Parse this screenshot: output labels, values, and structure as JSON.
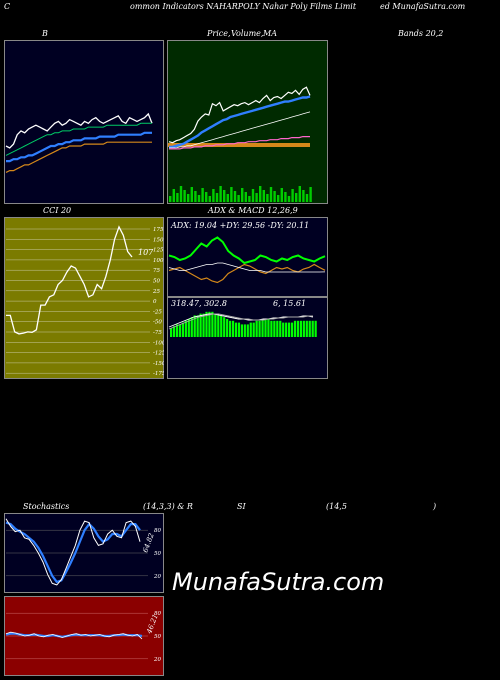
{
  "header": {
    "left": "C",
    "center": "ommon  Indicators NAHARPOLY Nahar Poly Films Limit",
    "right": "ed MunafaSutra.com"
  },
  "titles": {
    "p1": "B",
    "p2a": "Price,",
    "p2b": "Volume,",
    "p2c": "MA",
    "p3": "Bands 20,2",
    "cci": "CCI 20",
    "adx": "ADX  & MACD 12,26,9",
    "stoch": "Stochastics",
    "stoch_params": "(14,3,3) & R",
    "si": "SI",
    "rsi_params": "(14,5",
    "rsi_close": ")"
  },
  "labels": {
    "cci_value": "107",
    "adx_line": "ADX: 19.04  +DY: 29.56  -DY: 20.11",
    "macd_line": "318.47,  302.8",
    "macd_line2": "6,  15.61",
    "stoch_value": "64.82",
    "rsi_value": "46.21"
  },
  "colors": {
    "bg": "#000000",
    "navy": "#000022",
    "green_panel": "#002a00",
    "olive": "#7b7b00",
    "red_panel": "#8b0000",
    "blue": "#2f7fff",
    "orange": "#d4881a",
    "lime": "#00ff00"
  },
  "chart_data": [
    {
      "type": "line",
      "name": "bollinger",
      "x": [
        1,
        2,
        3,
        4,
        5,
        6,
        7,
        8,
        9,
        10,
        11,
        12,
        13,
        14,
        15,
        16,
        17,
        18,
        19,
        20,
        21,
        22,
        23,
        24,
        25,
        26,
        27,
        28,
        29,
        30,
        31,
        32,
        33,
        34,
        35,
        36,
        37,
        38,
        39,
        40
      ],
      "series": [
        {
          "values": [
            18,
            17,
            19,
            24,
            26,
            25,
            27,
            28,
            29,
            28,
            27,
            26,
            28,
            30,
            31,
            29,
            30,
            32,
            31,
            30,
            29,
            31,
            30,
            32,
            33,
            31,
            30,
            31,
            32,
            33,
            34,
            31,
            30,
            33,
            32,
            31,
            32,
            33,
            35,
            30
          ]
        },
        {
          "values": [
            13,
            14,
            15,
            16,
            17,
            18,
            19,
            20,
            21,
            22,
            23,
            24,
            24,
            25,
            25,
            26,
            26,
            26,
            27,
            27,
            27,
            27,
            28,
            28,
            28,
            28,
            28,
            29,
            29,
            29,
            29,
            29,
            29,
            29,
            29,
            29,
            30,
            30,
            30,
            30
          ]
        },
        {
          "values": [
            10,
            10,
            11,
            11,
            12,
            12,
            13,
            13,
            14,
            15,
            16,
            17,
            18,
            18,
            19,
            19,
            20,
            20,
            21,
            21,
            21,
            22,
            22,
            22,
            22,
            23,
            23,
            23,
            23,
            23,
            24,
            24,
            24,
            24,
            24,
            24,
            24,
            25,
            25,
            25
          ]
        },
        {
          "values": [
            4,
            5,
            5,
            6,
            7,
            8,
            8,
            9,
            10,
            11,
            12,
            13,
            14,
            15,
            16,
            17,
            17,
            18,
            18,
            18,
            18,
            19,
            19,
            19,
            19,
            19,
            19,
            20,
            20,
            20,
            20,
            20,
            20,
            20,
            20,
            20,
            20,
            20,
            20,
            20
          ]
        }
      ]
    },
    {
      "type": "line",
      "name": "price_ma",
      "x": [
        1,
        2,
        3,
        4,
        5,
        6,
        7,
        8,
        9,
        10,
        11,
        12,
        13,
        14,
        15,
        16,
        17,
        18,
        19,
        20,
        21,
        22,
        23,
        24,
        25,
        26,
        27,
        28,
        29,
        30,
        31,
        32,
        33,
        34,
        35,
        36,
        37,
        38,
        39,
        40
      ],
      "series": [
        {
          "values": [
            10,
            9,
            11,
            12,
            14,
            16,
            18,
            22,
            30,
            34,
            37,
            36,
            47,
            45,
            48,
            40,
            42,
            44,
            46,
            45,
            47,
            48,
            46,
            48,
            50,
            48,
            52,
            55,
            50,
            53,
            54,
            52,
            55,
            58,
            57,
            60,
            56,
            61,
            63,
            55
          ]
        },
        {
          "values": [
            5,
            5,
            6,
            7,
            8,
            10,
            12,
            14,
            16,
            19,
            21,
            23,
            25,
            27,
            29,
            31,
            32,
            34,
            35,
            36,
            37,
            38,
            39,
            40,
            41,
            42,
            43,
            44,
            45,
            46,
            47,
            48,
            49,
            49,
            50,
            51,
            52,
            53,
            53,
            54
          ]
        },
        {
          "values": [
            4,
            4,
            4,
            5,
            5,
            6,
            6,
            7,
            8,
            9,
            10,
            11,
            12,
            13,
            14,
            15,
            16,
            17,
            18,
            19,
            20,
            21,
            22,
            23,
            24,
            25,
            26,
            27,
            28,
            29,
            30,
            31,
            32,
            33,
            34,
            35,
            36,
            37,
            38,
            39
          ]
        },
        {
          "values": [
            3,
            3,
            3,
            3,
            4,
            4,
            4,
            5,
            5,
            5,
            6,
            6,
            6,
            7,
            7,
            7,
            8,
            8,
            8,
            9,
            9,
            9,
            10,
            10,
            10,
            11,
            11,
            11,
            12,
            12,
            12,
            13,
            13,
            13,
            14,
            14,
            14,
            15,
            15,
            15
          ]
        }
      ]
    },
    {
      "type": "line",
      "name": "cci",
      "ylim": [
        -175,
        175
      ],
      "y_ticks": [
        "175",
        "150",
        "125",
        "100",
        "75",
        "50",
        "25",
        "0",
        "-25",
        "-50",
        "-75",
        "-100",
        "-125",
        "-150",
        "-175"
      ],
      "x": [
        1,
        2,
        3,
        4,
        5,
        6,
        7,
        8,
        9,
        10,
        11,
        12,
        13,
        14,
        15,
        16,
        17,
        18,
        19,
        20,
        21,
        22,
        23,
        24,
        25,
        26,
        27,
        28,
        29,
        30
      ],
      "values": [
        -35,
        -35,
        -75,
        -80,
        -78,
        -75,
        -76,
        -70,
        -10,
        -10,
        10,
        15,
        40,
        50,
        70,
        85,
        80,
        60,
        40,
        10,
        15,
        40,
        30,
        60,
        100,
        150,
        180,
        160,
        120,
        107
      ]
    },
    {
      "type": "line",
      "name": "adx",
      "x": [
        1,
        2,
        3,
        4,
        5,
        6,
        7,
        8,
        9,
        10,
        11,
        12,
        13,
        14,
        15,
        16,
        17,
        18,
        19,
        20,
        21,
        22,
        23,
        24,
        25,
        26,
        27,
        28,
        29,
        30
      ],
      "series": [
        {
          "values": [
            30,
            29,
            27,
            28,
            30,
            34,
            38,
            36,
            40,
            42,
            39,
            33,
            30,
            28,
            25,
            26,
            27,
            30,
            29,
            27,
            26,
            28,
            27,
            29,
            30,
            28,
            27,
            26,
            28,
            29.56
          ]
        },
        {
          "values": [
            20,
            21,
            22,
            20,
            18,
            16,
            14,
            15,
            13,
            12,
            14,
            18,
            20,
            22,
            24,
            23,
            21,
            19,
            18,
            20,
            22,
            21,
            22,
            20,
            19,
            21,
            22,
            24,
            22,
            20.11
          ]
        },
        {
          "values": [
            22,
            21,
            20,
            20,
            21,
            22,
            23,
            24,
            24,
            25,
            25,
            24,
            23,
            22,
            21,
            20,
            20,
            20,
            19,
            19,
            19,
            19,
            19,
            19,
            19,
            19,
            19,
            19,
            19,
            19.04
          ]
        }
      ]
    },
    {
      "type": "bar",
      "name": "macd_histogram",
      "values": [
        5,
        6,
        7,
        7,
        8,
        9,
        10,
        11,
        12,
        12,
        13,
        13,
        14,
        14,
        14,
        13,
        12,
        12,
        11,
        10,
        9,
        9,
        8,
        8,
        7,
        7,
        7,
        8,
        8,
        9,
        9,
        10,
        10,
        10,
        9,
        9,
        9,
        9,
        8,
        8,
        8,
        8,
        9,
        9,
        9,
        9,
        9,
        9,
        9,
        9
      ]
    },
    {
      "type": "line",
      "name": "stochastics",
      "ylim": [
        0,
        100
      ],
      "y_ticks": [
        "80",
        "50",
        "20"
      ],
      "x": [
        1,
        2,
        3,
        4,
        5,
        6,
        7,
        8,
        9,
        10,
        11,
        12,
        13,
        14,
        15,
        16,
        17,
        18,
        19,
        20,
        21,
        22,
        23,
        24,
        25,
        26,
        27,
        28,
        29,
        30
      ],
      "series": [
        {
          "values": [
            95,
            85,
            78,
            80,
            70,
            68,
            60,
            50,
            38,
            22,
            10,
            8,
            15,
            30,
            45,
            60,
            80,
            92,
            90,
            70,
            60,
            62,
            75,
            80,
            72,
            70,
            90,
            92,
            85,
            64.82
          ]
        },
        {
          "values": [
            90,
            88,
            82,
            78,
            75,
            70,
            65,
            57,
            46,
            33,
            20,
            12,
            14,
            25,
            37,
            50,
            65,
            80,
            88,
            82,
            72,
            65,
            68,
            75,
            75,
            72,
            80,
            88,
            88,
            80
          ]
        }
      ]
    },
    {
      "type": "line",
      "name": "rsi",
      "ylim": [
        0,
        100
      ],
      "y_ticks": [
        "80",
        "50",
        "20"
      ],
      "x": [
        1,
        2,
        3,
        4,
        5,
        6,
        7,
        8,
        9,
        10,
        11,
        12,
        13,
        14,
        15,
        16,
        17,
        18,
        19,
        20,
        21,
        22,
        23,
        24,
        25,
        26,
        27,
        28,
        29,
        30
      ],
      "series": [
        {
          "values": [
            53,
            55,
            54,
            52,
            50,
            51,
            53,
            50,
            49,
            51,
            52,
            50,
            48,
            50,
            52,
            53,
            51,
            52,
            50,
            51,
            52,
            50,
            49,
            51,
            52,
            53,
            51,
            50,
            52,
            46.21
          ]
        },
        {
          "values": [
            52,
            53,
            53,
            52,
            51,
            51,
            52,
            51,
            50,
            50,
            51,
            50,
            49,
            50,
            51,
            52,
            51,
            51,
            51,
            51,
            51,
            50,
            50,
            51,
            51,
            52,
            51,
            51,
            51,
            50
          ]
        }
      ]
    }
  ]
}
